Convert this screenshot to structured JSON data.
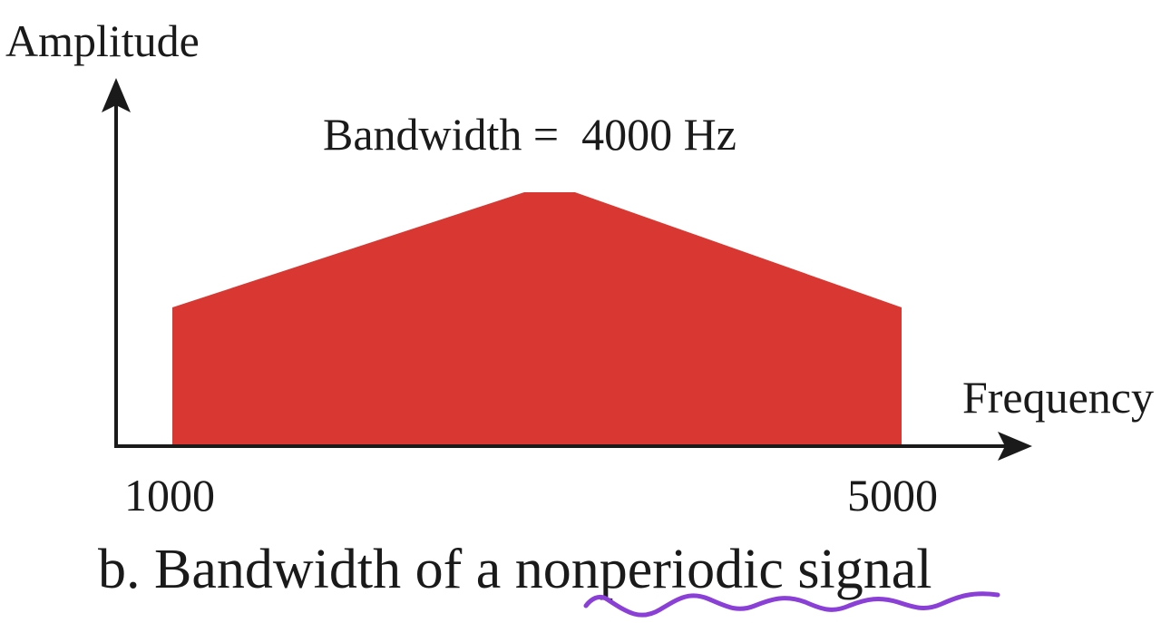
{
  "axes": {
    "y_label": "Amplitude",
    "x_label": "Frequency"
  },
  "annotation": "Bandwidth =  4000 Hz",
  "ticks": {
    "low": "1000",
    "high": "5000"
  },
  "caption": "b. Bandwidth of a nonperiodic signal",
  "colors": {
    "spectrum_fill": "#d93832",
    "axis": "#1a1a1a",
    "handwritten_underline": "#8a3fd6"
  }
}
